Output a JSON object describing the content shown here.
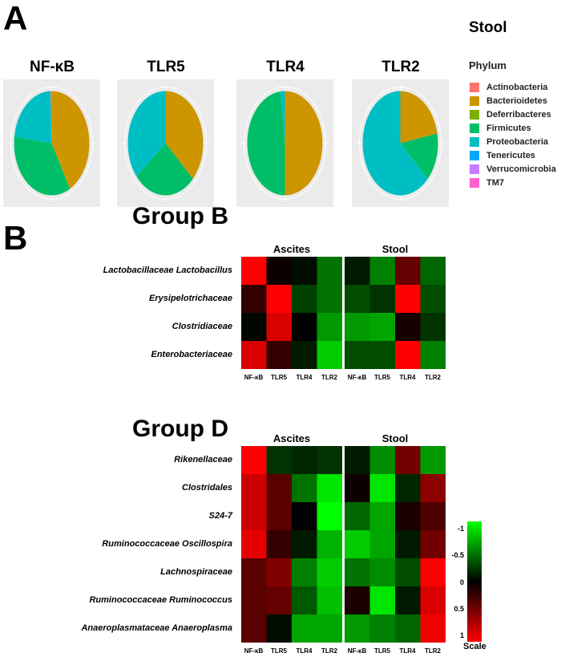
{
  "panel_a": {
    "letter": "A"
  },
  "panel_b": {
    "letter": "B"
  },
  "chart_data": [
    {
      "type": "pie",
      "title": "Stool",
      "legend_title": "Phylum",
      "legend_position": "right",
      "legend": [
        {
          "name": "Actinobacteria",
          "color": "#F8766D"
        },
        {
          "name": "Bacterioidetes",
          "color": "#CD9600"
        },
        {
          "name": "Deferribacteres",
          "color": "#7CAE00"
        },
        {
          "name": "Firmicutes",
          "color": "#00BE67"
        },
        {
          "name": "Proteobacteria",
          "color": "#00BFC4"
        },
        {
          "name": "Tenericutes",
          "color": "#00A9FF"
        },
        {
          "name": "Verrucomicrobia",
          "color": "#C77CFF"
        },
        {
          "name": "TM7",
          "color": "#FF61CC"
        }
      ],
      "pies": [
        {
          "title": "NF-κB",
          "slices": {
            "Bacterioidetes": 0.42,
            "Firmicutes": 0.35,
            "Proteobacteria": 0.225,
            "Actinobacteria": 0.005
          }
        },
        {
          "title": "TLR5",
          "slices": {
            "Bacterioidetes": 0.37,
            "Firmicutes": 0.27,
            "Proteobacteria": 0.36
          }
        },
        {
          "title": "TLR4",
          "slices": {
            "Bacterioidetes": 0.5,
            "Firmicutes": 0.48,
            "Proteobacteria": 0.02
          }
        },
        {
          "title": "TLR2",
          "slices": {
            "Bacterioidetes": 0.22,
            "Firmicutes": 0.15,
            "Proteobacteria": 0.63
          }
        }
      ]
    },
    {
      "type": "heatmap",
      "title": "Group B",
      "blocks": [
        "Ascites",
        "Stool"
      ],
      "columns": [
        "NF-κB",
        "TLR5",
        "TLR4",
        "TLR2"
      ],
      "rows": [
        "Lactobacillaceae Lactobacillus",
        "Erysipelotrichaceae",
        "Clostridiaceae",
        "Enterobacteriaceae"
      ],
      "values": {
        "Ascites": [
          [
            1.0,
            0.05,
            -0.05,
            -0.45
          ],
          [
            0.2,
            1.0,
            -0.25,
            -0.45
          ],
          [
            -0.02,
            0.85,
            0,
            -0.6
          ],
          [
            0.85,
            0.2,
            -0.1,
            -0.8
          ]
        ],
        "Stool": [
          [
            -0.1,
            -0.5,
            0.4,
            -0.4
          ],
          [
            -0.3,
            -0.2,
            1.0,
            -0.3
          ],
          [
            -0.6,
            -0.65,
            0.08,
            -0.2
          ],
          [
            -0.3,
            -0.3,
            1.0,
            -0.5
          ]
        ]
      }
    },
    {
      "type": "heatmap",
      "title": "Group D",
      "blocks": [
        "Ascites",
        "Stool"
      ],
      "columns": [
        "NF-κB",
        "TLR5",
        "TLR4",
        "TLR2"
      ],
      "rows": [
        "Rikenellaceae",
        "Clostridales",
        "S24-7",
        "Ruminococcaceae Oscillospira",
        "Lachnospiraceae",
        "Ruminococcaceae Ruminococcus",
        "Anaeroplasmataceae Anaeroplasma"
      ],
      "values": {
        "Ascites": [
          [
            1.0,
            -0.2,
            -0.15,
            -0.2
          ],
          [
            0.8,
            0.35,
            -0.45,
            -0.9
          ],
          [
            0.8,
            0.35,
            0,
            -1.0
          ],
          [
            0.9,
            0.2,
            -0.1,
            -0.7
          ],
          [
            0.35,
            0.5,
            -0.5,
            -0.8
          ],
          [
            0.35,
            0.4,
            -0.35,
            -0.75
          ],
          [
            0.35,
            -0.05,
            -0.65,
            -0.65
          ]
        ],
        "Stool": [
          [
            -0.1,
            -0.55,
            0.45,
            -0.6
          ],
          [
            0.05,
            -0.9,
            -0.15,
            0.55
          ],
          [
            -0.4,
            -0.65,
            0.1,
            0.3
          ],
          [
            -0.8,
            -0.65,
            -0.1,
            0.45
          ],
          [
            -0.45,
            -0.55,
            -0.3,
            1.0
          ],
          [
            0.1,
            -0.9,
            -0.1,
            0.85
          ],
          [
            -0.6,
            -0.5,
            -0.4,
            0.95
          ]
        ]
      },
      "scale": {
        "label": "Scale",
        "ticks": [
          "-1",
          "-0.5",
          "0",
          "0.5",
          "1"
        ],
        "range": [
          -1,
          1
        ],
        "low_color": "#00ff00",
        "mid_color": "#000000",
        "high_color": "#ff0000"
      }
    }
  ]
}
